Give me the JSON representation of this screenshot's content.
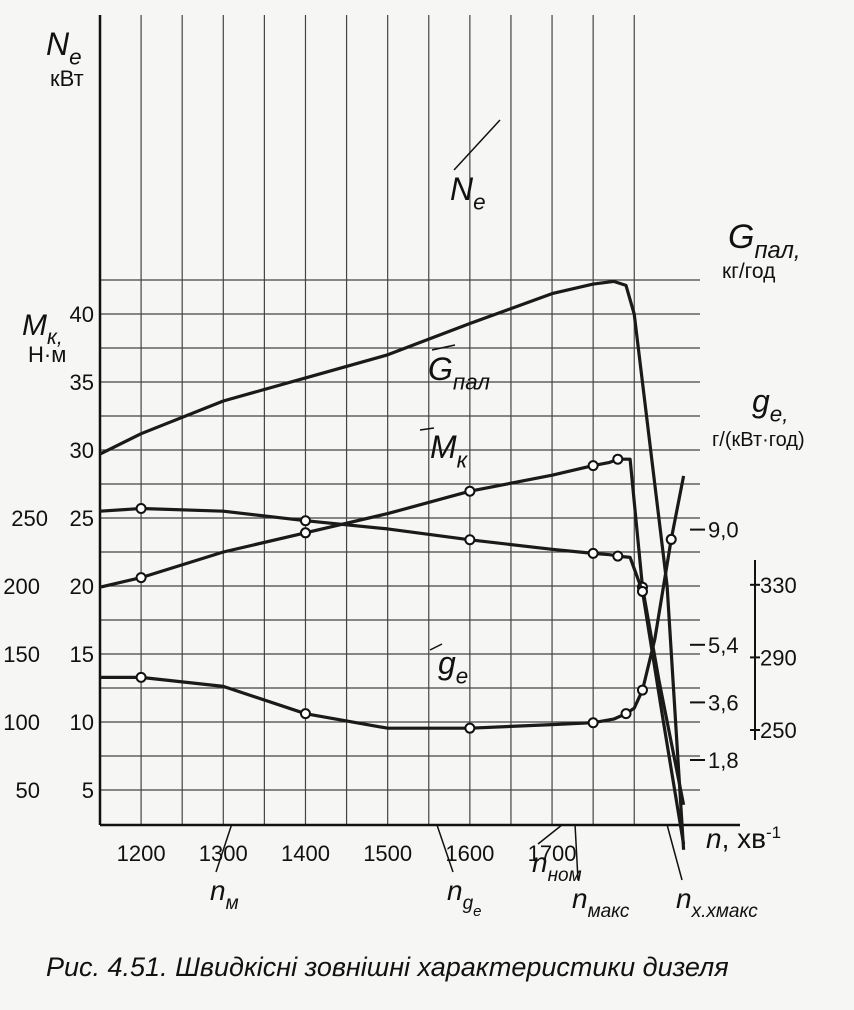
{
  "caption": "Рис. 4.51. Швидкісні зовнішні характеристики дизеля",
  "chart_data": {
    "type": "line",
    "x_axis": {
      "label": "n, хв",
      "label_sup": "-1",
      "ticks": [
        1200,
        1300,
        1400,
        1500,
        1600,
        1700
      ],
      "range": [
        1150,
        1880
      ],
      "markers": [
        {
          "main": "n",
          "sub": "м",
          "x": 1310
        },
        {
          "main": "n",
          "sub": "g",
          "sub2": "e",
          "x": 1560
        },
        {
          "main": "n",
          "sub": "ном",
          "x": 1712
        },
        {
          "main": "n",
          "sub": "макс",
          "x": 1728
        },
        {
          "main": "n",
          "sub": "х.хмакс",
          "x": 1840
        }
      ]
    },
    "axes": {
      "Ne": {
        "label": "N",
        "label_sub": "e",
        "unit": "кВт",
        "ticks": [
          5,
          10,
          15,
          20,
          25,
          30,
          35,
          40
        ]
      },
      "Mk": {
        "label": "M",
        "label_sub": "к",
        "unit": "Н·м",
        "ticks": [
          50,
          100,
          150,
          200,
          250
        ]
      },
      "Gpal": {
        "label": "G",
        "label_sub": "пал",
        "unit": "кг/год",
        "ticks": [
          "1,8",
          "3,6",
          "5,4",
          "9,0"
        ]
      },
      "ge": {
        "label": "g",
        "label_sub": "e",
        "unit": "г/(кВт·год)",
        "ticks": [
          250,
          290,
          330
        ]
      }
    },
    "series": [
      {
        "name": "N",
        "name_sub": "e",
        "axis": "Ne",
        "x": [
          1150,
          1200,
          1300,
          1400,
          1500,
          1600,
          1700,
          1750,
          1775,
          1790,
          1800,
          1840,
          1860
        ],
        "y": [
          29.7,
          31.2,
          33.6,
          35.3,
          37.0,
          39.3,
          41.5,
          42.2,
          42.4,
          42.1,
          40.0,
          20.0,
          0.6
        ]
      },
      {
        "name": "G",
        "name_sub": "пал",
        "axis": "Gpal",
        "x": [
          1150,
          1200,
          1300,
          1400,
          1500,
          1600,
          1700,
          1750,
          1770,
          1780,
          1795,
          1810,
          1830,
          1860
        ],
        "y": [
          7.2,
          7.5,
          8.3,
          8.9,
          9.5,
          10.2,
          10.7,
          11.0,
          11.1,
          11.2,
          11.2,
          7.2,
          4.3,
          0.4
        ]
      },
      {
        "name": "M",
        "name_sub": "к",
        "axis": "Mk",
        "x": [
          1150,
          1200,
          1300,
          1400,
          1500,
          1600,
          1700,
          1750,
          1770,
          1780,
          1795,
          1810,
          1835,
          1860
        ],
        "y": [
          255,
          257,
          255,
          248,
          242,
          234,
          227,
          224,
          223,
          222,
          221,
          196,
          102,
          10
        ]
      },
      {
        "name": "g",
        "name_sub": "e",
        "axis": "ge",
        "x": [
          1150,
          1200,
          1300,
          1400,
          1500,
          1600,
          1700,
          1750,
          1775,
          1790,
          1800,
          1810,
          1825,
          1845,
          1860
        ],
        "y": [
          279,
          279,
          274,
          259,
          251,
          251,
          253,
          254,
          256,
          259,
          262,
          272,
          300,
          355,
          390
        ]
      }
    ],
    "grid": true
  }
}
